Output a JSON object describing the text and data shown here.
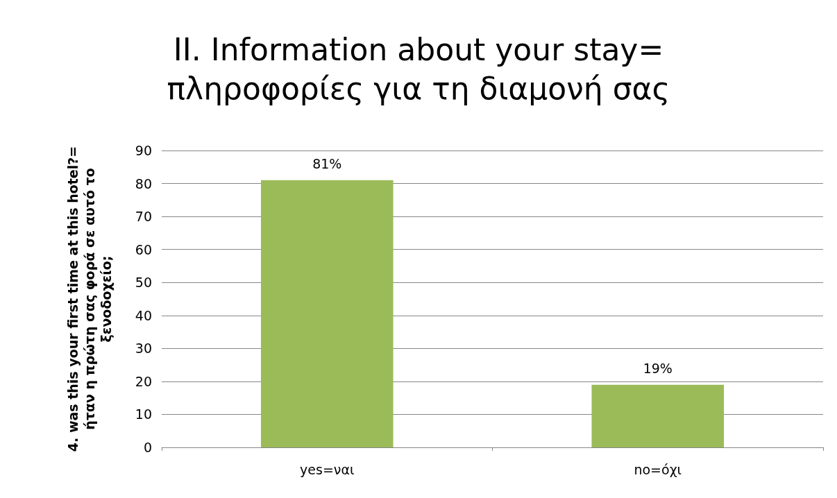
{
  "chart_data": {
    "type": "bar",
    "title": "II. Information about your stay=\nπληροφορίες για τη διαμονή σας",
    "ylabel": "4. was this your first time at this hotel?=\nήταν η πρώτη σας φορά σε αυτό το\nξενοδοχείο;",
    "categories": [
      "yes=ναι",
      "no=όχι"
    ],
    "values": [
      81,
      19
    ],
    "value_labels": [
      "81%",
      "19%"
    ],
    "color": "#9bbb59",
    "ylim": [
      0,
      90
    ],
    "yticks": [
      0,
      10,
      20,
      30,
      40,
      50,
      60,
      70,
      80,
      90
    ],
    "grid": "y"
  }
}
